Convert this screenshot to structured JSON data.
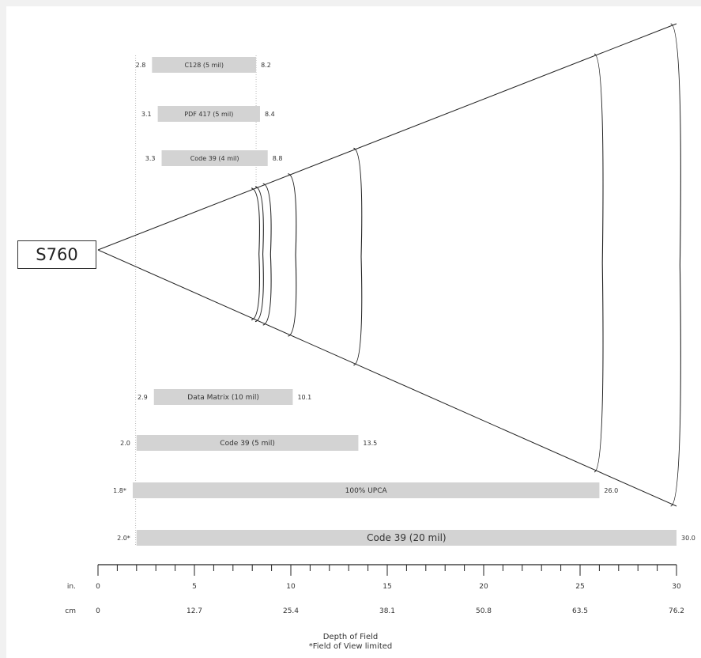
{
  "model_label": "S760",
  "footnotes": {
    "title": "Depth of Field",
    "note": "*Field of View limited"
  },
  "chart_data": {
    "type": "bar",
    "orientation": "horizontal-range",
    "x_unit_labels": [
      "in.",
      "cm"
    ],
    "x_ticks_in": [
      0,
      5,
      10,
      15,
      20,
      25,
      30
    ],
    "x_ticks_cm": [
      "0",
      "12.7",
      "25.4",
      "38.1",
      "50.8",
      "63.5",
      "76.2"
    ],
    "xlim": [
      0,
      30
    ],
    "upper_bars": [
      {
        "label": "C128 (5 mil)",
        "start": 2.8,
        "end": 8.2,
        "start_label": "2.8",
        "end_label": "8.2"
      },
      {
        "label": "PDF 417 (5 mil)",
        "start": 3.1,
        "end": 8.4,
        "start_label": "3.1",
        "end_label": "8.4"
      },
      {
        "label": "Code 39 (4 mil)",
        "start": 3.3,
        "end": 8.8,
        "start_label": "3.3",
        "end_label": "8.8"
      }
    ],
    "lower_bars": [
      {
        "label": "Data Matrix (10 mil)",
        "start": 2.9,
        "end": 10.1,
        "start_label": "2.9",
        "end_label": "10.1"
      },
      {
        "label": "Code 39 (5 mil)",
        "start": 2.0,
        "end": 13.5,
        "start_label": "2.0",
        "end_label": "13.5"
      },
      {
        "label": "100% UPCA",
        "start": 1.8,
        "end": 26.0,
        "start_label": "1.8*",
        "end_label": "26.0"
      },
      {
        "label": "Code 39 (20 mil)",
        "start": 2.0,
        "end": 30.0,
        "start_label": "2.0*",
        "end_label": "30.0"
      }
    ],
    "range_arcs_in": [
      8.2,
      8.4,
      8.8,
      10.1,
      13.5,
      26.0,
      30.0
    ]
  }
}
